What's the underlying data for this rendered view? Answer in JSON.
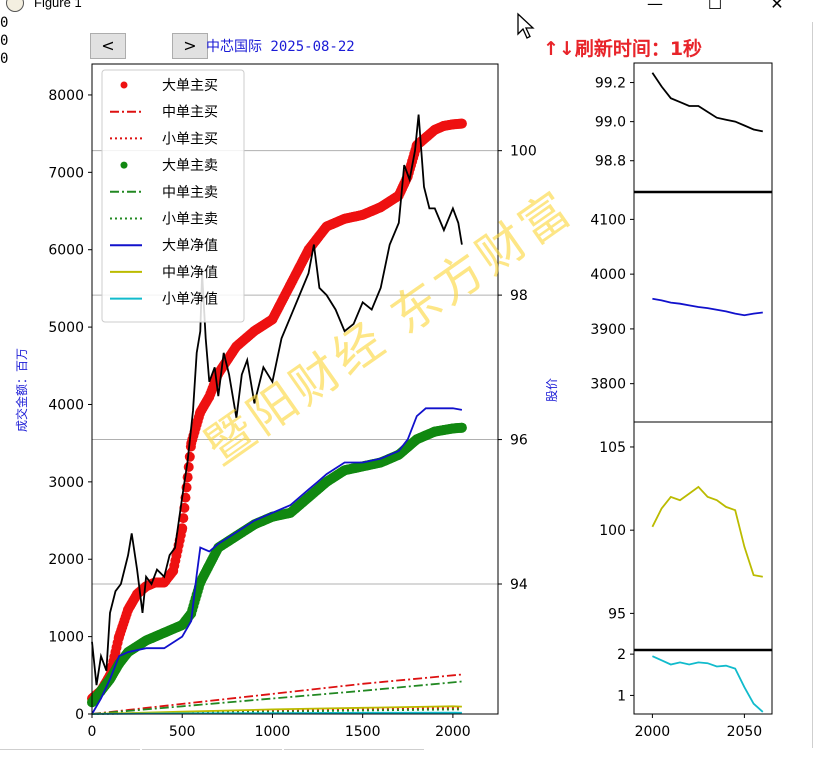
{
  "window": {
    "title": "Figure 1",
    "minimize": "—",
    "maximize": "☐",
    "close": "✕",
    "left_sliver": [
      "0",
      "0",
      "0"
    ]
  },
  "toolbar": {
    "back_label": "<",
    "forward_label": ">"
  },
  "header": {
    "chart_title": "中芯国际 2025-08-22",
    "refresh_text": "↑↓刷新时间：1秒"
  },
  "watermark": {
    "text": "暨阳财经 东方财富"
  },
  "colors": {
    "big_buy": "#ee1111",
    "mid_buy": "#dd1111",
    "small_buy": "#dd1111",
    "big_sell": "#118811",
    "mid_sell": "#228822",
    "small_sell": "#228822",
    "big_net": "#1111cc",
    "mid_net": "#bbbb00",
    "small_net": "#11bbcc",
    "price": "#000000",
    "label_blue": "#1b1bd6",
    "refresh_red": "#e8242a"
  },
  "chart_data": [
    {
      "type": "line",
      "ylabel": "成交金额：百万",
      "y2label": "股价",
      "xlim": [
        0,
        2250
      ],
      "ylim": [
        0,
        8400
      ],
      "y2lim": [
        92.2,
        101.2
      ],
      "xticks": [
        "0",
        "500",
        "1000",
        "1500",
        "2000"
      ],
      "xtick_values": [
        0,
        500,
        1000,
        1500,
        2000
      ],
      "yticks": [
        "0",
        "1000",
        "2000",
        "3000",
        "4000",
        "5000",
        "6000",
        "7000",
        "8000"
      ],
      "ytick_values": [
        0,
        1000,
        2000,
        3000,
        4000,
        5000,
        6000,
        7000,
        8000
      ],
      "y2ticks": [
        "94",
        "96",
        "98",
        "100"
      ],
      "y2tick_values": [
        94,
        96,
        98,
        100
      ],
      "y2grid": true,
      "legend_position": "top-left",
      "series": [
        {
          "name": "大单主买",
          "style": "dots",
          "axis": "left",
          "color_key": "big_buy",
          "x": [
            0,
            50,
            100,
            150,
            200,
            250,
            300,
            350,
            400,
            450,
            500,
            550,
            600,
            650,
            700,
            800,
            900,
            1000,
            1100,
            1200,
            1300,
            1400,
            1500,
            1600,
            1700,
            1750,
            1800,
            1850,
            1900,
            1950,
            2000,
            2050
          ],
          "y": [
            200,
            300,
            500,
            1000,
            1350,
            1550,
            1650,
            1700,
            1700,
            1850,
            2400,
            3500,
            3900,
            4100,
            4400,
            4750,
            4950,
            5100,
            5550,
            6000,
            6300,
            6400,
            6450,
            6550,
            6700,
            6950,
            7350,
            7450,
            7550,
            7600,
            7620,
            7630
          ]
        },
        {
          "name": "中单主买",
          "style": "dashdot",
          "axis": "left",
          "color_key": "mid_buy",
          "x": [
            0,
            500,
            1000,
            1500,
            2050
          ],
          "y": [
            0,
            130,
            260,
            390,
            510
          ]
        },
        {
          "name": "小单主买",
          "style": "dotted",
          "axis": "left",
          "color_key": "small_buy",
          "x": [
            0,
            500,
            1000,
            1500,
            2050
          ],
          "y": [
            0,
            20,
            40,
            60,
            80
          ]
        },
        {
          "name": "大单主卖",
          "style": "dots",
          "axis": "left",
          "color_key": "big_sell",
          "x": [
            0,
            50,
            100,
            150,
            200,
            300,
            400,
            500,
            550,
            600,
            700,
            800,
            900,
            1000,
            1100,
            1200,
            1300,
            1400,
            1500,
            1600,
            1700,
            1750,
            1800,
            1850,
            1900,
            1950,
            2000,
            2050
          ],
          "y": [
            150,
            300,
            450,
            650,
            800,
            950,
            1050,
            1150,
            1300,
            1700,
            2150,
            2300,
            2450,
            2550,
            2600,
            2800,
            3000,
            3150,
            3200,
            3250,
            3350,
            3450,
            3550,
            3600,
            3650,
            3670,
            3690,
            3700
          ]
        },
        {
          "name": "中单主卖",
          "style": "dashdot",
          "axis": "left",
          "color_key": "mid_sell",
          "x": [
            0,
            500,
            1000,
            1500,
            2050
          ],
          "y": [
            0,
            100,
            200,
            300,
            420
          ]
        },
        {
          "name": "小单主卖",
          "style": "dotted",
          "axis": "left",
          "color_key": "small_sell",
          "x": [
            0,
            500,
            1000,
            1500,
            2050
          ],
          "y": [
            0,
            15,
            30,
            45,
            60
          ]
        },
        {
          "name": "大单净值",
          "style": "line",
          "axis": "left",
          "color_key": "big_net",
          "x": [
            0,
            50,
            100,
            150,
            200,
            300,
            400,
            500,
            550,
            580,
            600,
            650,
            700,
            800,
            900,
            1000,
            1100,
            1200,
            1250,
            1300,
            1400,
            1500,
            1600,
            1700,
            1750,
            1800,
            1850,
            1900,
            2000,
            2050
          ],
          "y": [
            0,
            200,
            450,
            750,
            800,
            850,
            850,
            1000,
            1200,
            1800,
            2150,
            2100,
            2200,
            2350,
            2500,
            2600,
            2700,
            2900,
            3000,
            3100,
            3250,
            3250,
            3300,
            3400,
            3550,
            3850,
            3950,
            3950,
            3950,
            3930
          ]
        },
        {
          "name": "中单净值",
          "style": "line",
          "axis": "left",
          "color_key": "mid_net",
          "x": [
            0,
            500,
            1000,
            1500,
            2000,
            2050
          ],
          "y": [
            0,
            30,
            60,
            80,
            100,
            95
          ]
        },
        {
          "name": "小单净值",
          "style": "line",
          "axis": "left",
          "color_key": "small_net",
          "x": [
            0,
            500,
            1000,
            1500,
            2000,
            2050
          ],
          "y": [
            0,
            8,
            12,
            15,
            18,
            16
          ]
        },
        {
          "name": "",
          "style": "line",
          "axis": "right",
          "color_key": "price",
          "x": [
            0,
            25,
            50,
            80,
            100,
            130,
            160,
            200,
            220,
            250,
            280,
            300,
            330,
            360,
            400,
            430,
            460,
            500,
            530,
            560,
            580,
            600,
            610,
            630,
            650,
            680,
            700,
            730,
            760,
            800,
            830,
            860,
            900,
            950,
            1000,
            1050,
            1100,
            1150,
            1200,
            1230,
            1260,
            1300,
            1350,
            1400,
            1450,
            1500,
            1550,
            1600,
            1650,
            1700,
            1730,
            1760,
            1790,
            1810,
            1840,
            1870,
            1900,
            1950,
            2000,
            2030,
            2050
          ],
          "y": [
            93.2,
            92.6,
            93.0,
            92.8,
            93.6,
            93.9,
            94.0,
            94.4,
            94.7,
            94.2,
            93.6,
            94.1,
            94.0,
            94.2,
            94.1,
            94.4,
            94.5,
            95.2,
            95.7,
            96.4,
            97.2,
            97.5,
            98.3,
            97.4,
            96.8,
            97.0,
            96.6,
            97.2,
            96.9,
            96.3,
            96.9,
            97.1,
            96.5,
            97.0,
            96.8,
            97.4,
            97.7,
            98.0,
            98.3,
            98.7,
            98.1,
            98.0,
            97.8,
            97.5,
            97.6,
            97.9,
            97.8,
            98.1,
            98.7,
            99.0,
            99.8,
            99.6,
            100.0,
            100.5,
            99.5,
            99.2,
            99.2,
            98.9,
            99.2,
            99.0,
            98.7
          ]
        }
      ]
    },
    {
      "type": "line",
      "xlim": [
        1990,
        2065
      ],
      "ylim": [
        98.64,
        99.3
      ],
      "yticks": [
        "98.8",
        "99.0",
        "99.2"
      ],
      "ytick_values": [
        98.8,
        99.0,
        99.2
      ],
      "xticks": [],
      "series": [
        {
          "name": "",
          "color_key": "price",
          "x": [
            2000,
            2005,
            2010,
            2015,
            2020,
            2025,
            2030,
            2035,
            2040,
            2045,
            2050,
            2055,
            2060
          ],
          "y": [
            99.25,
            99.18,
            99.12,
            99.1,
            99.08,
            99.08,
            99.05,
            99.02,
            99.01,
            99.0,
            98.98,
            98.96,
            98.95
          ]
        }
      ]
    },
    {
      "type": "line",
      "xlim": [
        1990,
        2065
      ],
      "ylim": [
        3730,
        4150
      ],
      "yticks": [
        "3800",
        "3900",
        "4000",
        "4100"
      ],
      "ytick_values": [
        3800,
        3900,
        4000,
        4100
      ],
      "xticks": [],
      "series": [
        {
          "name": "",
          "color_key": "big_net",
          "x": [
            2000,
            2005,
            2010,
            2015,
            2020,
            2025,
            2030,
            2035,
            2040,
            2045,
            2050,
            2055,
            2060
          ],
          "y": [
            3955,
            3952,
            3948,
            3946,
            3943,
            3940,
            3938,
            3935,
            3932,
            3928,
            3925,
            3928,
            3930
          ]
        }
      ]
    },
    {
      "type": "line",
      "xlim": [
        1990,
        2065
      ],
      "ylim": [
        92.8,
        106.5
      ],
      "yticks": [
        "95",
        "100",
        "105"
      ],
      "ytick_values": [
        95,
        100,
        105
      ],
      "xticks": [],
      "series": [
        {
          "name": "",
          "color_key": "mid_net",
          "x": [
            2000,
            2005,
            2010,
            2015,
            2020,
            2025,
            2030,
            2035,
            2040,
            2045,
            2050,
            2055,
            2060
          ],
          "y": [
            100.2,
            101.3,
            102.0,
            101.8,
            102.2,
            102.6,
            102.0,
            101.8,
            101.4,
            101.2,
            99.0,
            97.3,
            97.2
          ]
        }
      ]
    },
    {
      "type": "line",
      "xlim": [
        1990,
        2065
      ],
      "ylim": [
        0.55,
        2.1
      ],
      "yticks": [
        "1",
        "2"
      ],
      "ytick_values": [
        1,
        2
      ],
      "xticks": [
        "2000",
        "2050"
      ],
      "xtick_values": [
        2000,
        2050
      ],
      "series": [
        {
          "name": "",
          "color_key": "small_net",
          "x": [
            2000,
            2005,
            2010,
            2015,
            2020,
            2025,
            2030,
            2035,
            2040,
            2045,
            2050,
            2055,
            2060
          ],
          "y": [
            1.95,
            1.85,
            1.75,
            1.8,
            1.75,
            1.8,
            1.78,
            1.7,
            1.72,
            1.65,
            1.2,
            0.8,
            0.6
          ]
        }
      ]
    }
  ]
}
